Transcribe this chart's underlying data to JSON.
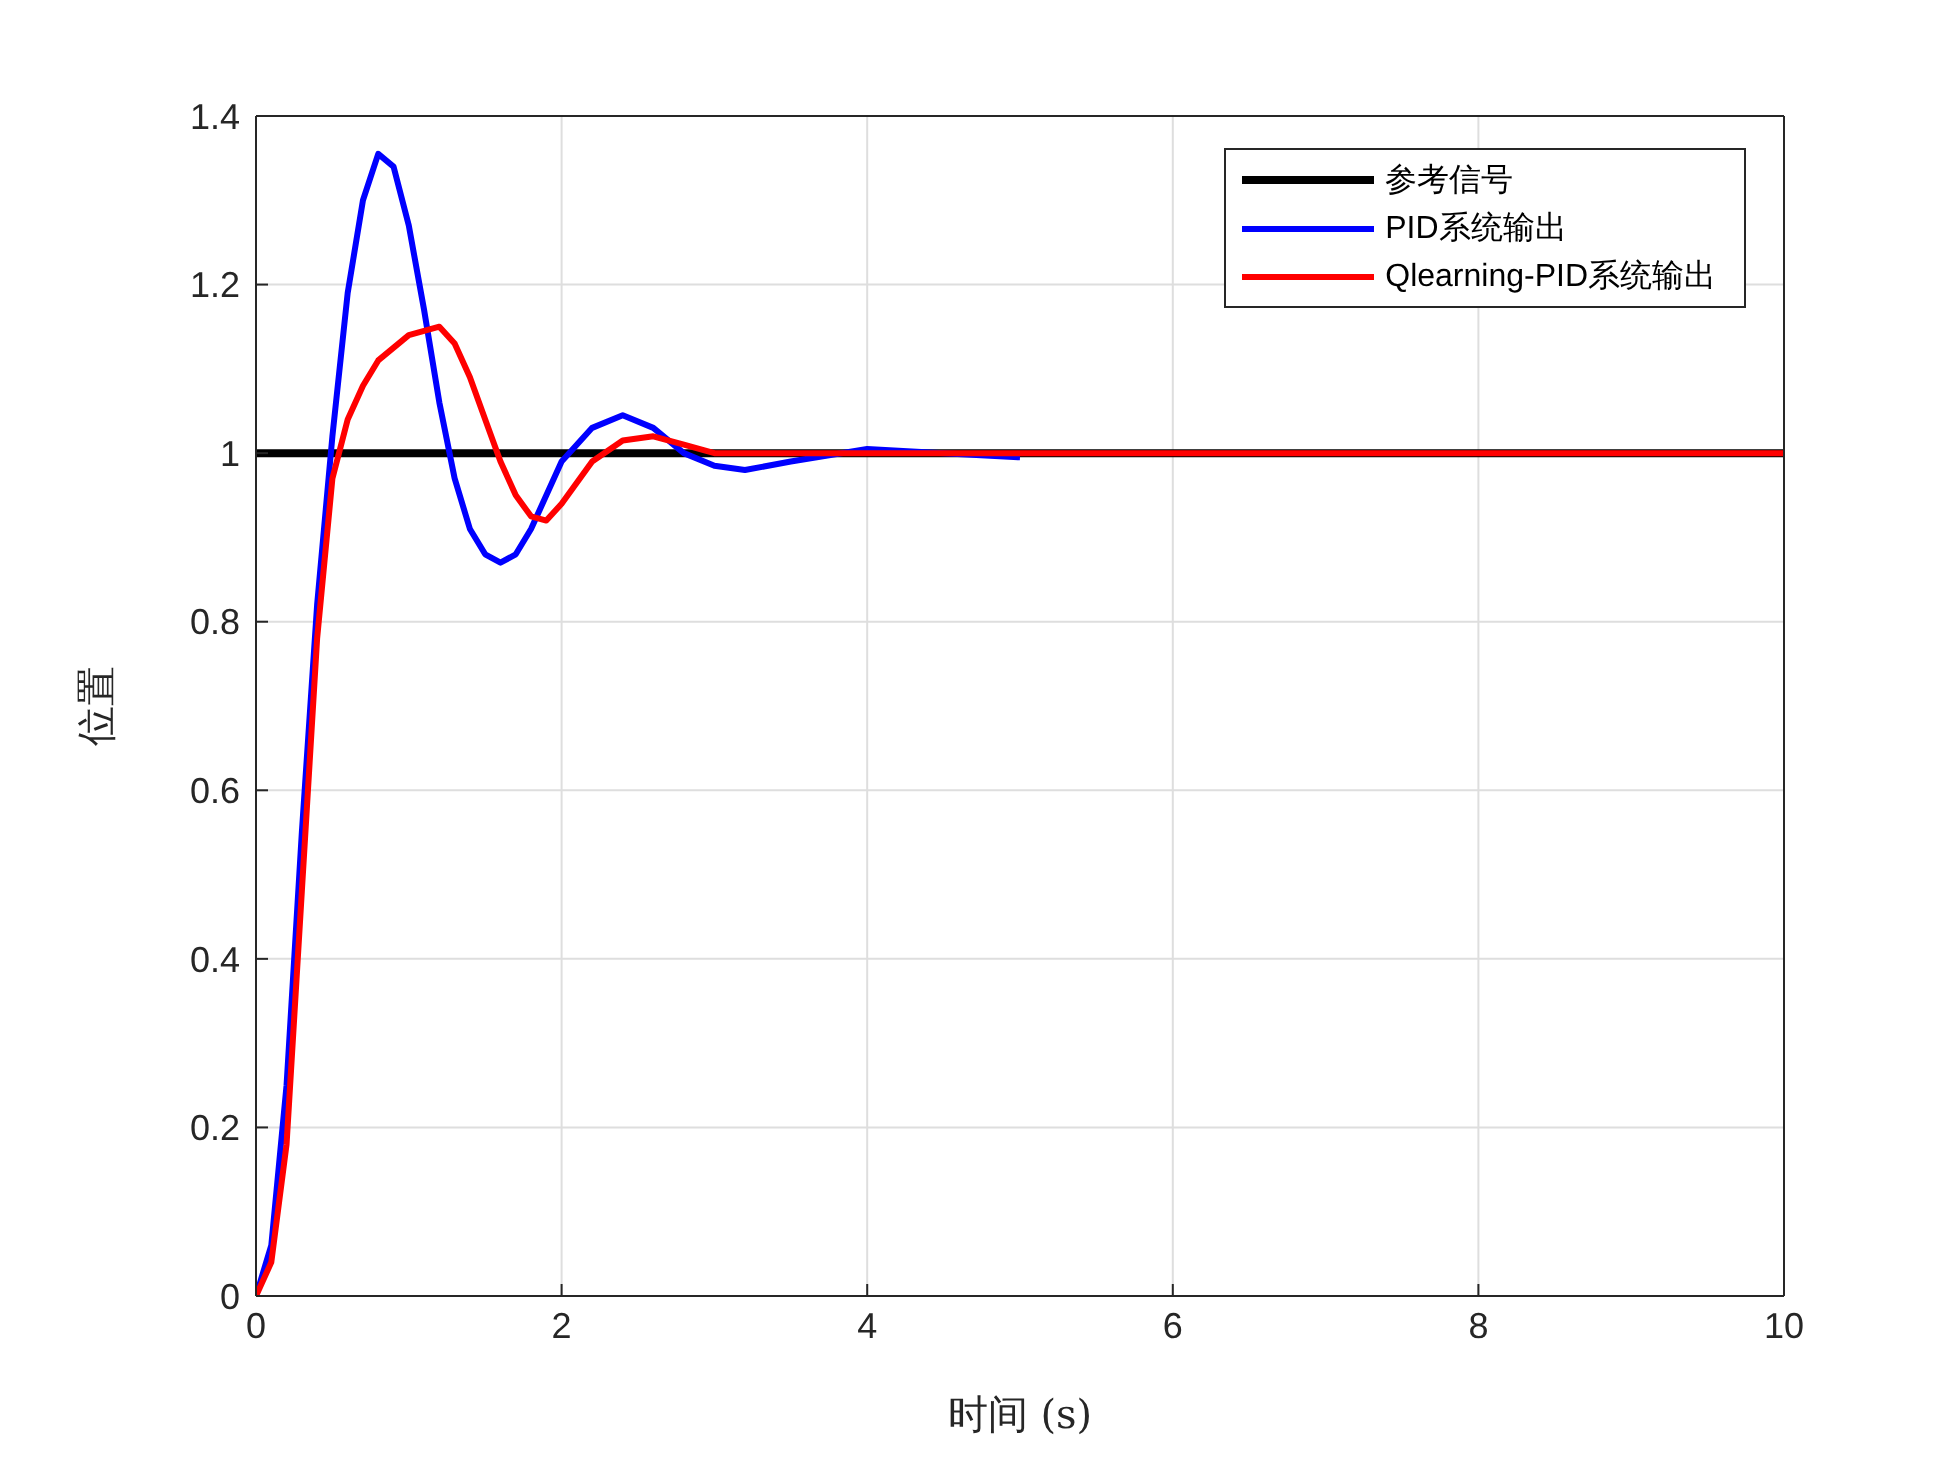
{
  "chart_data": {
    "type": "line",
    "xlabel": "时间 (s)",
    "ylabel": "位置",
    "xlim": [
      0,
      10
    ],
    "xticks": [
      0,
      2,
      4,
      6,
      8,
      10
    ],
    "ylim": [
      0,
      1.4
    ],
    "yticks": [
      0,
      0.2,
      0.4,
      0.6,
      0.8,
      1,
      1.2,
      1.4
    ],
    "grid": true,
    "legend": "top right",
    "marker": "none",
    "line_style": "solid",
    "series": [
      {
        "name": "参考信号",
        "color": "#000000",
        "x": [
          0,
          10
        ],
        "values": [
          1,
          1
        ]
      },
      {
        "name": "PID系统输出",
        "color": "#0000ff",
        "x": [
          0,
          0.1,
          0.2,
          0.3,
          0.4,
          0.5,
          0.6,
          0.7,
          0.8,
          0.9,
          1.0,
          1.1,
          1.2,
          1.3,
          1.4,
          1.5,
          1.6,
          1.7,
          1.8,
          1.9,
          2.0,
          2.2,
          2.4,
          2.6,
          2.8,
          3.0,
          3.2,
          3.5,
          4,
          4.5,
          5
        ],
        "values": [
          0,
          0.06,
          0.25,
          0.55,
          0.82,
          1.02,
          1.19,
          1.3,
          1.355,
          1.34,
          1.27,
          1.17,
          1.06,
          0.97,
          0.91,
          0.88,
          0.87,
          0.88,
          0.91,
          0.95,
          0.99,
          1.03,
          1.045,
          1.03,
          1.0,
          0.985,
          0.98,
          0.99,
          1.005,
          1.0,
          0.995
        ]
      },
      {
        "name": "Qlearning-PID系统输出",
        "color": "#ff0000",
        "x": [
          0,
          0.1,
          0.2,
          0.3,
          0.4,
          0.5,
          0.6,
          0.7,
          0.8,
          1.0,
          1.2,
          1.3,
          1.4,
          1.5,
          1.6,
          1.7,
          1.8,
          1.9,
          2.0,
          2.2,
          2.4,
          2.6,
          2.8,
          3.0,
          4,
          10
        ],
        "values": [
          0,
          0.04,
          0.18,
          0.48,
          0.78,
          0.97,
          1.04,
          1.08,
          1.11,
          1.14,
          1.15,
          1.13,
          1.09,
          1.04,
          0.99,
          0.95,
          0.925,
          0.92,
          0.94,
          0.99,
          1.015,
          1.02,
          1.01,
          1.0,
          1,
          1
        ]
      }
    ]
  }
}
